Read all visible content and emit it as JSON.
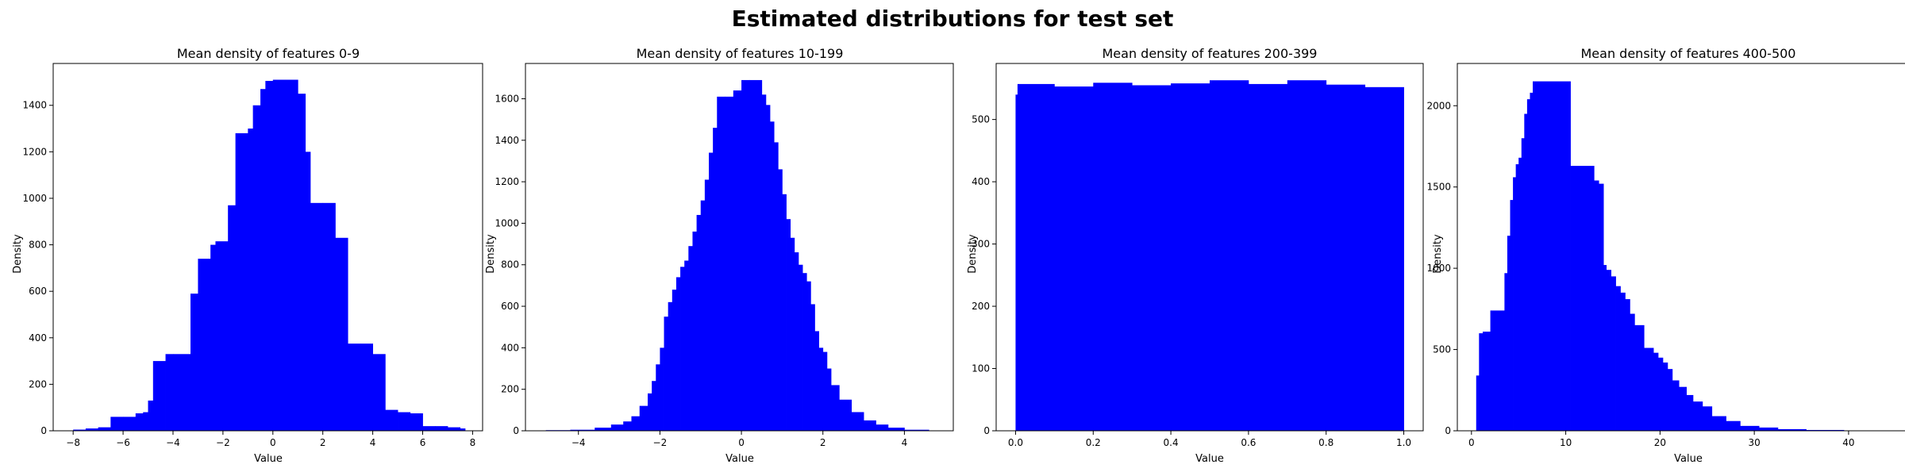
{
  "figure": {
    "title": "Estimated distributions for test set",
    "bar_color": "#0000ff"
  },
  "chart_data": [
    {
      "type": "bar",
      "title": "Mean density of features 0-9",
      "xlabel": "Value",
      "ylabel": "Density",
      "xlim": [
        -8.8,
        8.4
      ],
      "ylim": [
        0,
        1580
      ],
      "xticks": [
        -8,
        -6,
        -4,
        -2,
        0,
        2,
        4,
        6,
        8
      ],
      "yticks": [
        0,
        200,
        400,
        600,
        800,
        1000,
        1200,
        1400
      ],
      "bins": [
        [
          -8.0,
          -7.5,
          5
        ],
        [
          -7.5,
          -7.0,
          10
        ],
        [
          -7.0,
          -6.5,
          15
        ],
        [
          -6.5,
          -6.0,
          60
        ],
        [
          -6.0,
          -5.5,
          60
        ],
        [
          -5.5,
          -5.2,
          75
        ],
        [
          -5.2,
          -5.0,
          80
        ],
        [
          -5.0,
          -4.8,
          130
        ],
        [
          -4.8,
          -4.3,
          300
        ],
        [
          -4.3,
          -4.0,
          330
        ],
        [
          -4.0,
          -3.3,
          330
        ],
        [
          -3.3,
          -3.0,
          590
        ],
        [
          -3.0,
          -2.5,
          740
        ],
        [
          -2.5,
          -2.3,
          800
        ],
        [
          -2.3,
          -1.8,
          815
        ],
        [
          -1.8,
          -1.5,
          970
        ],
        [
          -1.5,
          -1.0,
          1280
        ],
        [
          -1.0,
          -0.8,
          1300
        ],
        [
          -0.8,
          -0.5,
          1400
        ],
        [
          -0.5,
          -0.3,
          1470
        ],
        [
          -0.3,
          0.0,
          1505
        ],
        [
          0.0,
          0.5,
          1510
        ],
        [
          0.5,
          1.0,
          1510
        ],
        [
          1.0,
          1.3,
          1450
        ],
        [
          1.3,
          1.5,
          1200
        ],
        [
          1.5,
          2.0,
          980
        ],
        [
          2.0,
          2.5,
          980
        ],
        [
          2.5,
          3.0,
          830
        ],
        [
          3.0,
          3.5,
          375
        ],
        [
          3.5,
          4.0,
          375
        ],
        [
          4.0,
          4.5,
          330
        ],
        [
          4.5,
          5.0,
          90
        ],
        [
          5.0,
          5.5,
          80
        ],
        [
          5.5,
          6.0,
          75
        ],
        [
          6.0,
          6.5,
          20
        ],
        [
          6.5,
          7.0,
          20
        ],
        [
          7.0,
          7.5,
          15
        ],
        [
          7.5,
          7.7,
          10
        ]
      ]
    },
    {
      "type": "bar",
      "title": "Mean density of features 10-199",
      "xlabel": "Value",
      "ylabel": "Density",
      "xlim": [
        -5.3,
        5.2
      ],
      "ylim": [
        0,
        1770
      ],
      "xticks": [
        -4,
        -2,
        0,
        2,
        4
      ],
      "yticks": [
        0,
        200,
        400,
        600,
        800,
        1000,
        1200,
        1400,
        1600
      ],
      "bins": [
        [
          -4.8,
          -4.2,
          3
        ],
        [
          -4.2,
          -3.6,
          5
        ],
        [
          -3.6,
          -3.2,
          15
        ],
        [
          -3.2,
          -2.9,
          30
        ],
        [
          -2.9,
          -2.7,
          45
        ],
        [
          -2.7,
          -2.5,
          70
        ],
        [
          -2.5,
          -2.3,
          120
        ],
        [
          -2.3,
          -2.2,
          180
        ],
        [
          -2.2,
          -2.1,
          240
        ],
        [
          -2.1,
          -2.0,
          320
        ],
        [
          -2.0,
          -1.9,
          400
        ],
        [
          -1.9,
          -1.8,
          550
        ],
        [
          -1.8,
          -1.7,
          620
        ],
        [
          -1.7,
          -1.6,
          680
        ],
        [
          -1.6,
          -1.5,
          740
        ],
        [
          -1.5,
          -1.4,
          790
        ],
        [
          -1.4,
          -1.3,
          820
        ],
        [
          -1.3,
          -1.2,
          890
        ],
        [
          -1.2,
          -1.1,
          960
        ],
        [
          -1.1,
          -1.0,
          1040
        ],
        [
          -1.0,
          -0.9,
          1110
        ],
        [
          -0.9,
          -0.8,
          1210
        ],
        [
          -0.8,
          -0.7,
          1340
        ],
        [
          -0.7,
          -0.6,
          1460
        ],
        [
          -0.6,
          -0.4,
          1610
        ],
        [
          -0.4,
          -0.2,
          1610
        ],
        [
          -0.2,
          0.0,
          1640
        ],
        [
          0.0,
          0.2,
          1690
        ],
        [
          0.2,
          0.5,
          1690
        ],
        [
          0.5,
          0.6,
          1620
        ],
        [
          0.6,
          0.7,
          1570
        ],
        [
          0.7,
          0.8,
          1490
        ],
        [
          0.8,
          0.9,
          1390
        ],
        [
          0.9,
          1.0,
          1260
        ],
        [
          1.0,
          1.1,
          1140
        ],
        [
          1.1,
          1.2,
          1020
        ],
        [
          1.2,
          1.3,
          930
        ],
        [
          1.3,
          1.4,
          860
        ],
        [
          1.4,
          1.5,
          800
        ],
        [
          1.5,
          1.6,
          760
        ],
        [
          1.6,
          1.7,
          720
        ],
        [
          1.7,
          1.8,
          610
        ],
        [
          1.8,
          1.9,
          480
        ],
        [
          1.9,
          2.0,
          400
        ],
        [
          2.0,
          2.1,
          380
        ],
        [
          2.1,
          2.2,
          300
        ],
        [
          2.2,
          2.4,
          220
        ],
        [
          2.4,
          2.7,
          150
        ],
        [
          2.7,
          3.0,
          90
        ],
        [
          3.0,
          3.3,
          50
        ],
        [
          3.3,
          3.6,
          30
        ],
        [
          3.6,
          4.0,
          15
        ],
        [
          4.0,
          4.6,
          5
        ]
      ]
    },
    {
      "type": "bar",
      "title": "Mean density of features 200-399",
      "xlabel": "Value",
      "ylabel": "Density",
      "xlim": [
        -0.05,
        1.05
      ],
      "ylim": [
        0,
        590
      ],
      "xticks": [
        0.0,
        0.2,
        0.4,
        0.6,
        0.8,
        1.0
      ],
      "yticks": [
        0,
        100,
        200,
        300,
        400,
        500
      ],
      "bins": [
        [
          0.0,
          0.005,
          540
        ],
        [
          0.005,
          0.1,
          557
        ],
        [
          0.1,
          0.2,
          553
        ],
        [
          0.2,
          0.3,
          559
        ],
        [
          0.3,
          0.4,
          555
        ],
        [
          0.4,
          0.5,
          558
        ],
        [
          0.5,
          0.6,
          563
        ],
        [
          0.6,
          0.7,
          557
        ],
        [
          0.7,
          0.8,
          563
        ],
        [
          0.8,
          0.9,
          556
        ],
        [
          0.9,
          1.0,
          552
        ]
      ]
    },
    {
      "type": "bar",
      "title": "Mean density of features 400-500",
      "xlabel": "Value",
      "ylabel": "Density",
      "xlim": [
        -1.5,
        47.5
      ],
      "ylim": [
        0,
        2260
      ],
      "xticks": [
        0,
        10,
        20,
        30,
        40
      ],
      "yticks": [
        0,
        500,
        1000,
        1500,
        2000
      ],
      "bins": [
        [
          0.5,
          0.8,
          340
        ],
        [
          0.8,
          1.2,
          600
        ],
        [
          1.2,
          2.0,
          610
        ],
        [
          2.0,
          3.5,
          740
        ],
        [
          3.5,
          3.8,
          970
        ],
        [
          3.8,
          4.1,
          1200
        ],
        [
          4.1,
          4.4,
          1420
        ],
        [
          4.4,
          4.7,
          1560
        ],
        [
          4.7,
          5.0,
          1640
        ],
        [
          5.0,
          5.3,
          1680
        ],
        [
          5.3,
          5.6,
          1800
        ],
        [
          5.6,
          5.9,
          1950
        ],
        [
          5.9,
          6.2,
          2040
        ],
        [
          6.2,
          6.5,
          2080
        ],
        [
          6.5,
          10.5,
          2150
        ],
        [
          10.5,
          13.0,
          1630
        ],
        [
          13.0,
          13.5,
          1540
        ],
        [
          13.5,
          14.0,
          1520
        ],
        [
          14.0,
          14.3,
          1020
        ],
        [
          14.3,
          14.8,
          990
        ],
        [
          14.8,
          15.3,
          950
        ],
        [
          15.3,
          15.8,
          890
        ],
        [
          15.8,
          16.3,
          850
        ],
        [
          16.3,
          16.8,
          810
        ],
        [
          16.8,
          17.3,
          720
        ],
        [
          17.3,
          18.3,
          650
        ],
        [
          18.3,
          19.3,
          510
        ],
        [
          19.3,
          19.8,
          480
        ],
        [
          19.8,
          20.3,
          450
        ],
        [
          20.3,
          20.8,
          420
        ],
        [
          20.8,
          21.3,
          380
        ],
        [
          21.3,
          22.0,
          310
        ],
        [
          22.0,
          22.8,
          270
        ],
        [
          22.8,
          23.5,
          220
        ],
        [
          23.5,
          24.5,
          180
        ],
        [
          24.5,
          25.5,
          150
        ],
        [
          25.5,
          27.0,
          90
        ],
        [
          27.0,
          28.5,
          60
        ],
        [
          28.5,
          30.5,
          30
        ],
        [
          30.5,
          32.5,
          20
        ],
        [
          32.5,
          35.5,
          10
        ],
        [
          35.5,
          39.5,
          5
        ],
        [
          39.5,
          46.0,
          2
        ]
      ]
    }
  ]
}
